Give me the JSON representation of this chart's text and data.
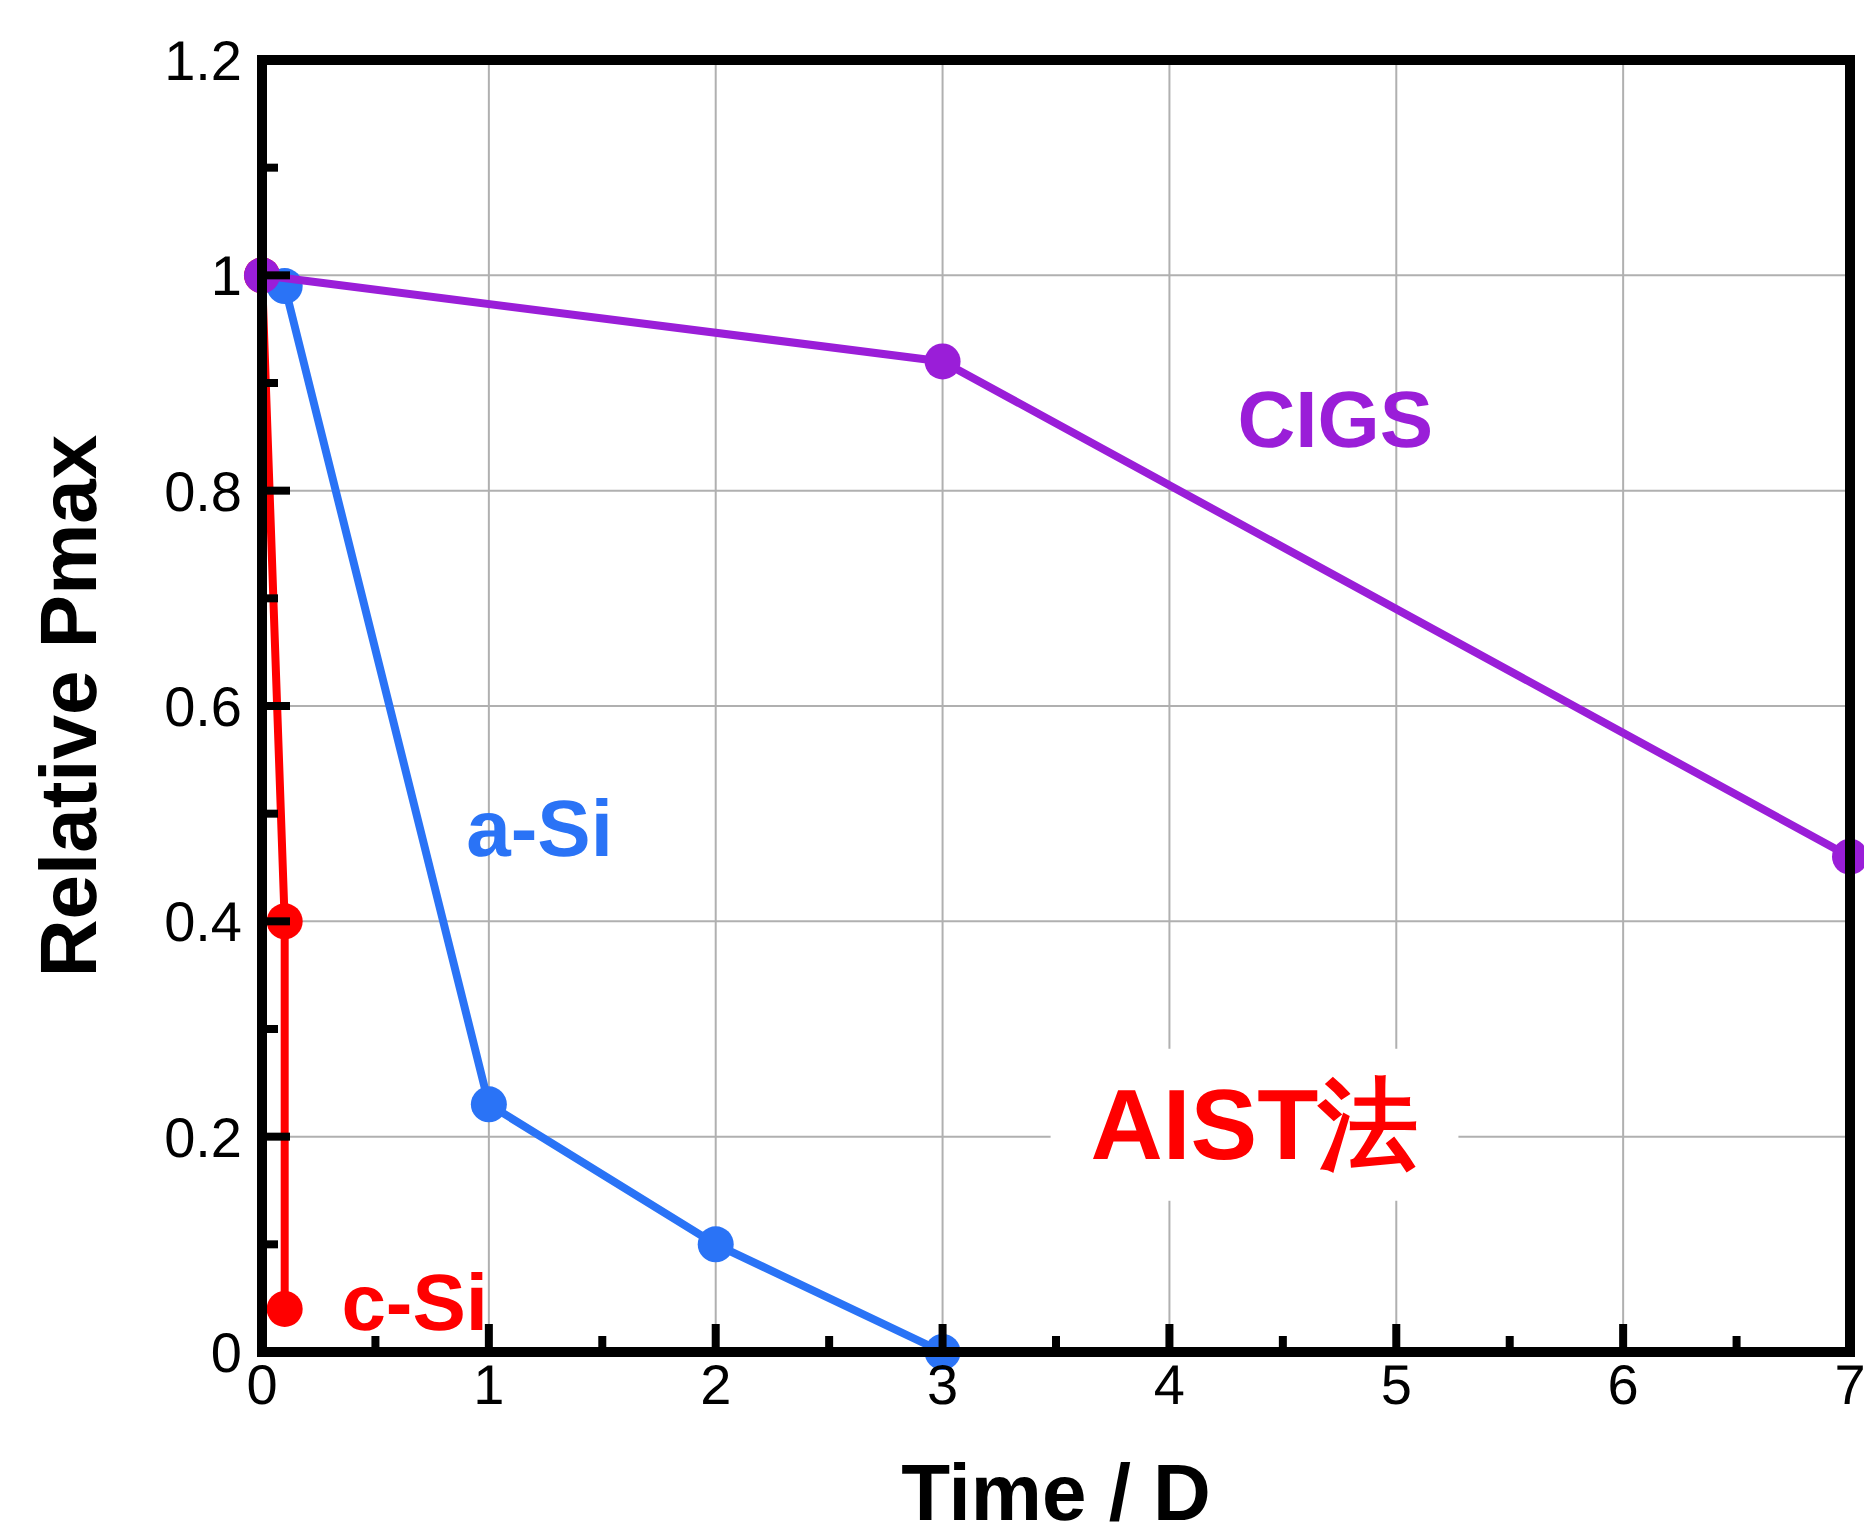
{
  "chart_data": {
    "type": "line",
    "xlabel": "Time / D",
    "ylabel": "Relative Pmax",
    "xlim": [
      0,
      7
    ],
    "ylim": [
      0,
      1.2
    ],
    "xticks": [
      0,
      {
        "value": 0.5,
        "label": null
      },
      1,
      {
        "value": 1.5,
        "label": null
      },
      2,
      {
        "value": 2.5,
        "label": null
      },
      3,
      {
        "value": 3.5,
        "label": null
      },
      4,
      {
        "value": 4.5,
        "label": null
      },
      5,
      {
        "value": 5.5,
        "label": null
      },
      6,
      {
        "value": 6.5,
        "label": null
      },
      7
    ],
    "yticks": [
      0,
      {
        "value": 0.1,
        "label": null
      },
      0.2,
      {
        "value": 0.3,
        "label": null
      },
      0.4,
      {
        "value": 0.5,
        "label": null
      },
      0.6,
      {
        "value": 0.7,
        "label": null
      },
      0.8,
      {
        "value": 0.9,
        "label": null
      },
      1,
      {
        "value": 1.1,
        "label": null
      },
      1.2
    ],
    "grid": true,
    "marker": "circle",
    "line_style": "solid",
    "series": [
      {
        "name": "c-Si",
        "color": "#ff0000",
        "x": [
          0,
          0.1,
          0.1
        ],
        "values": [
          1,
          0.4,
          0.04
        ]
      },
      {
        "name": "a-Si",
        "color": "#2a73f6",
        "x": [
          0.1,
          1,
          2,
          3
        ],
        "values": [
          0.99,
          0.23,
          0.1,
          0
        ]
      },
      {
        "name": "CIGS",
        "color": "#9a1ed8",
        "x": [
          0,
          3,
          7
        ],
        "values": [
          1,
          0.92,
          0.46
        ]
      }
    ],
    "annotations": [
      "AIST法"
    ]
  }
}
